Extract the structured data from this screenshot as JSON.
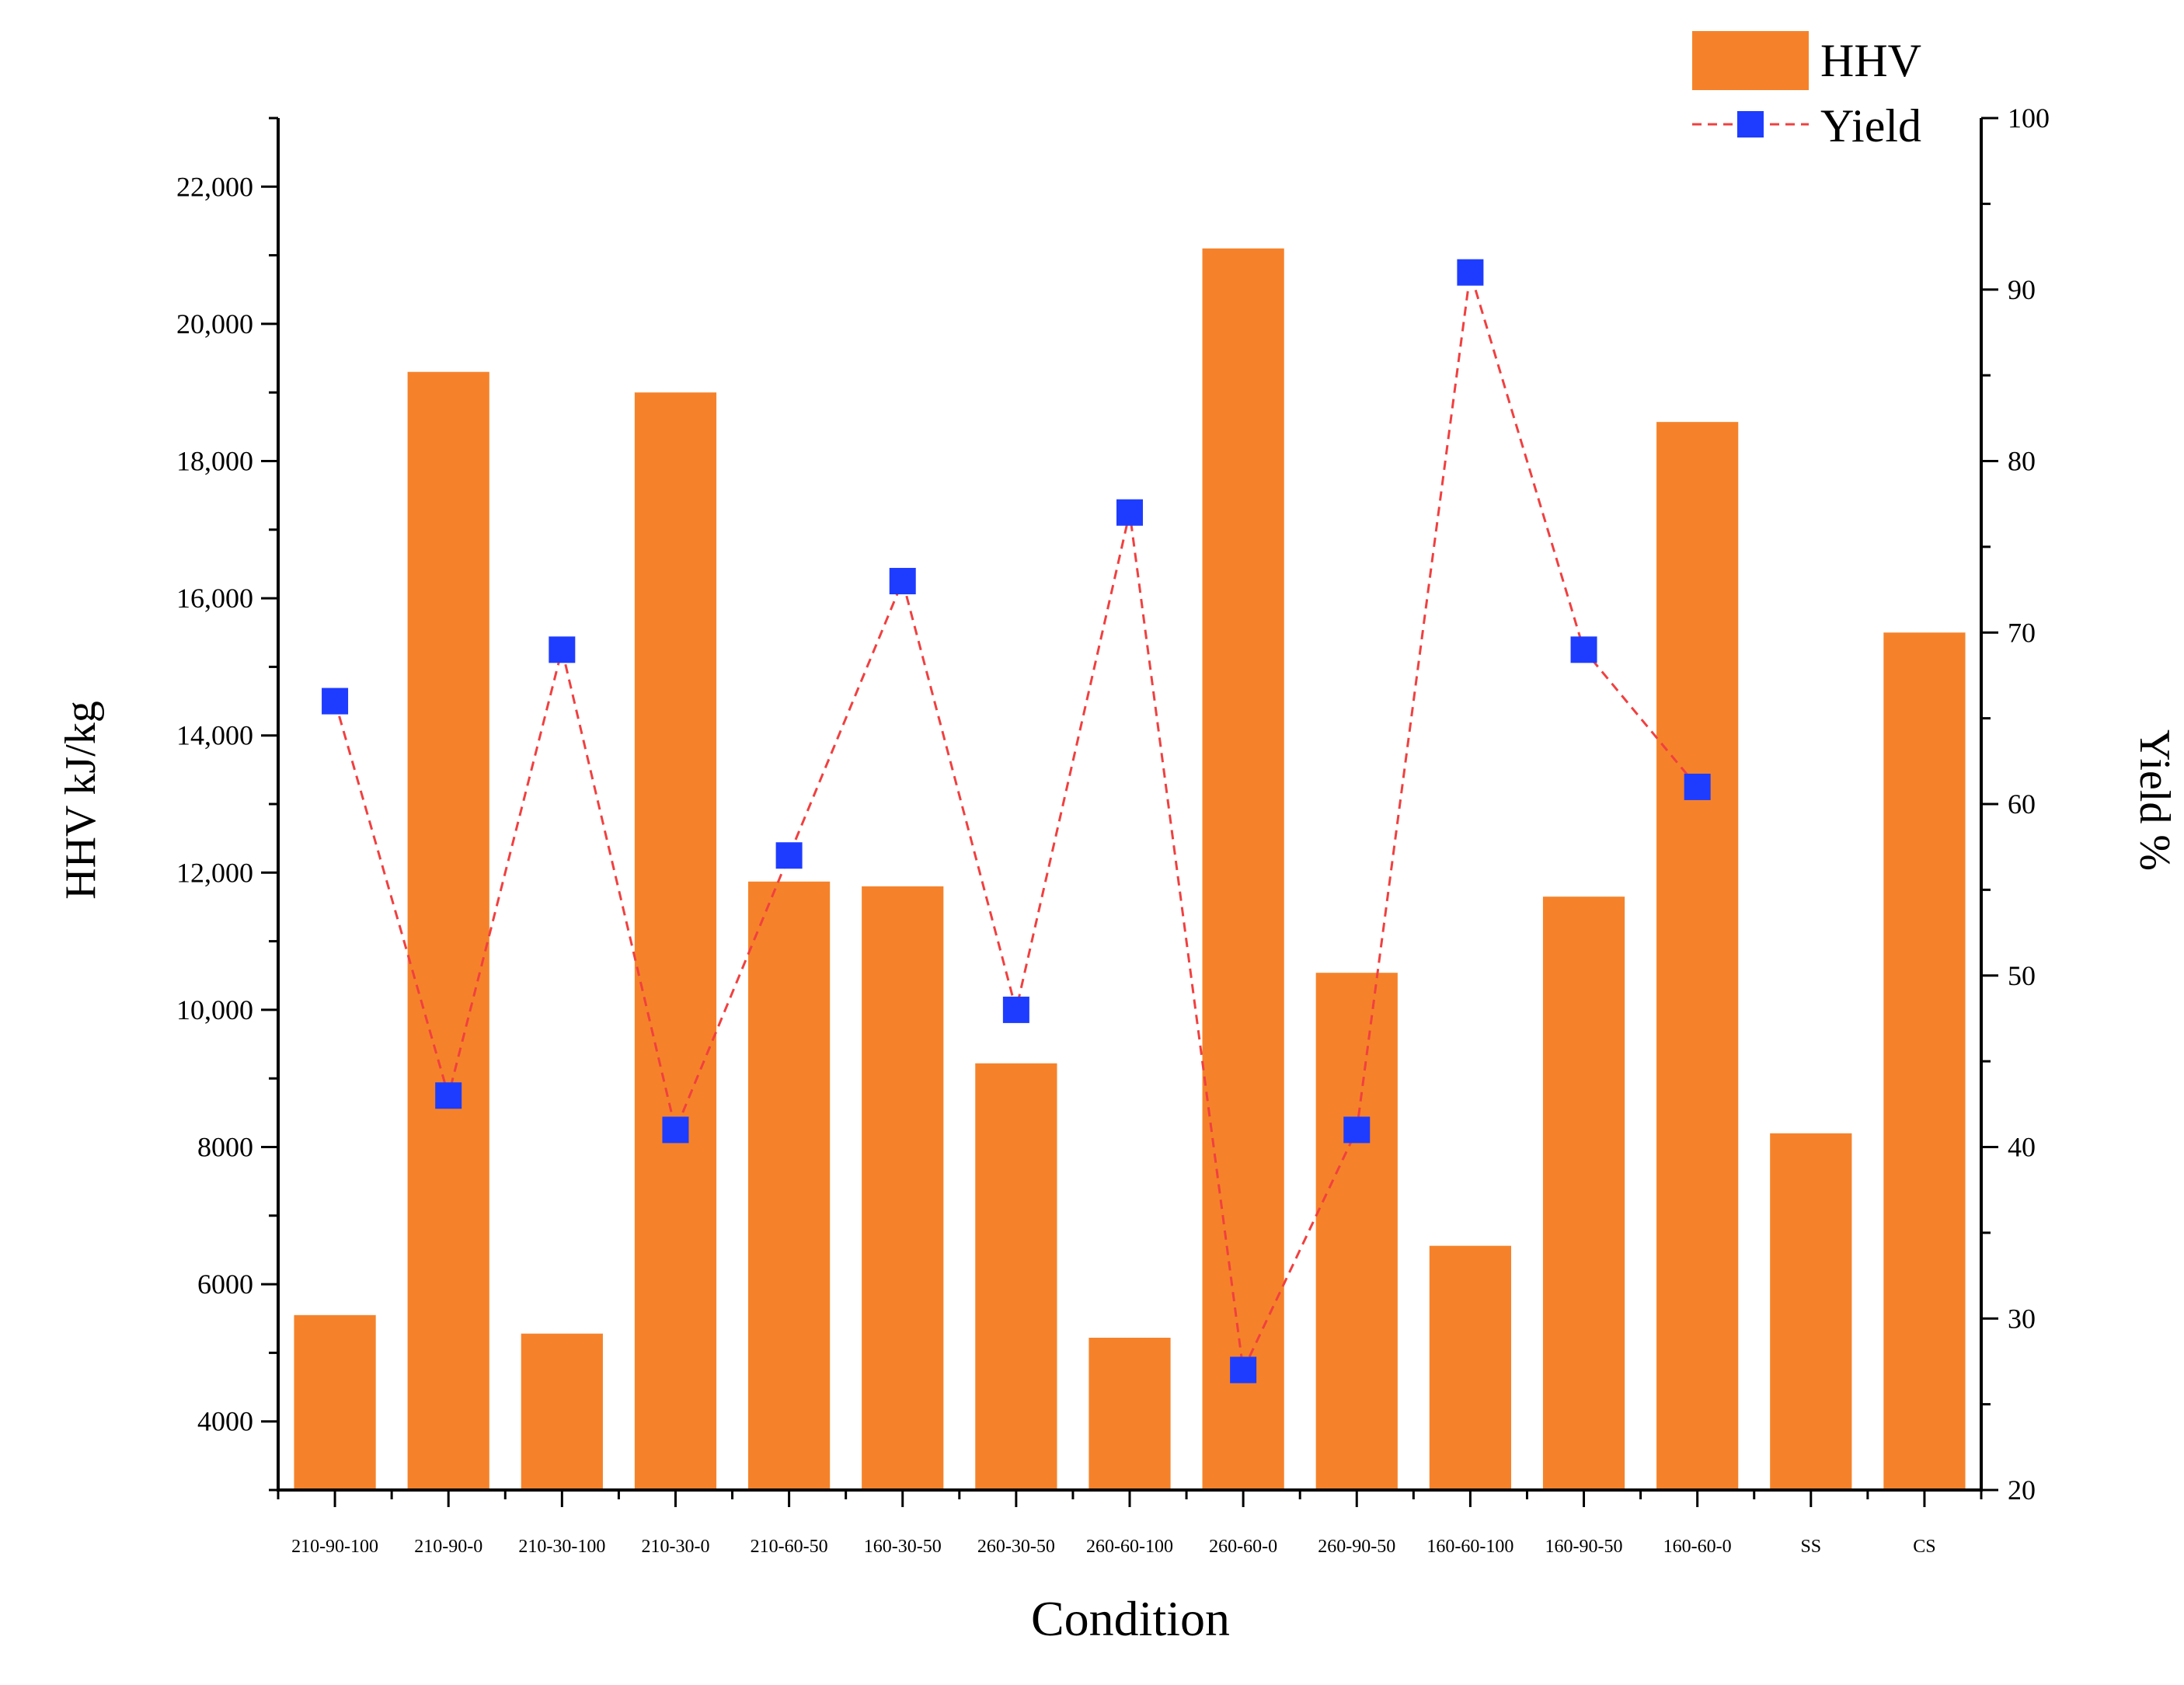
{
  "chart_data": {
    "type": "bar",
    "categories": [
      "210-90-100",
      "210-90-0",
      "210-30-100",
      "210-30-0",
      "210-60-50",
      "160-30-50",
      "260-30-50",
      "260-60-100",
      "260-60-0",
      "260-90-50",
      "160-60-100",
      "160-90-50",
      "160-60-0",
      "SS",
      "CS"
    ],
    "series": [
      {
        "name": "HHV",
        "type": "bar",
        "axis": "left",
        "color": "#F5822A",
        "values": [
          5550,
          19300,
          5280,
          19000,
          11870,
          11800,
          9220,
          5220,
          21100,
          10540,
          6560,
          11650,
          18570,
          8200,
          15500
        ]
      },
      {
        "name": "Yield",
        "type": "line",
        "axis": "right",
        "line_color": "#F04040",
        "marker_color": "#1E3CFF",
        "line_style": "dashed",
        "values": [
          66,
          43,
          69,
          41,
          57,
          73,
          48,
          77,
          27,
          41,
          91,
          69,
          61,
          null,
          null
        ]
      }
    ],
    "xlabel": "Condition",
    "ylabel_left": "HHV kJ/kg",
    "ylabel_right": "Yield %",
    "ylim_left": [
      3000,
      23000
    ],
    "ylim_right": [
      20,
      100
    ],
    "yticks_left": [
      {
        "value": 4000,
        "label": "4000"
      },
      {
        "value": 6000,
        "label": "6000"
      },
      {
        "value": 8000,
        "label": "8000"
      },
      {
        "value": 10000,
        "label": "10,000"
      },
      {
        "value": 12000,
        "label": "12,000"
      },
      {
        "value": 14000,
        "label": "14,000"
      },
      {
        "value": 16000,
        "label": "16,000"
      },
      {
        "value": 18000,
        "label": "18,000"
      },
      {
        "value": 20000,
        "label": "20,000"
      },
      {
        "value": 22000,
        "label": "22,000"
      }
    ],
    "yticks_right": [
      20,
      30,
      40,
      50,
      60,
      70,
      80,
      90,
      100
    ],
    "legend": {
      "position": "top-right",
      "entries": [
        "HHV",
        "Yield"
      ]
    },
    "grid": false
  }
}
